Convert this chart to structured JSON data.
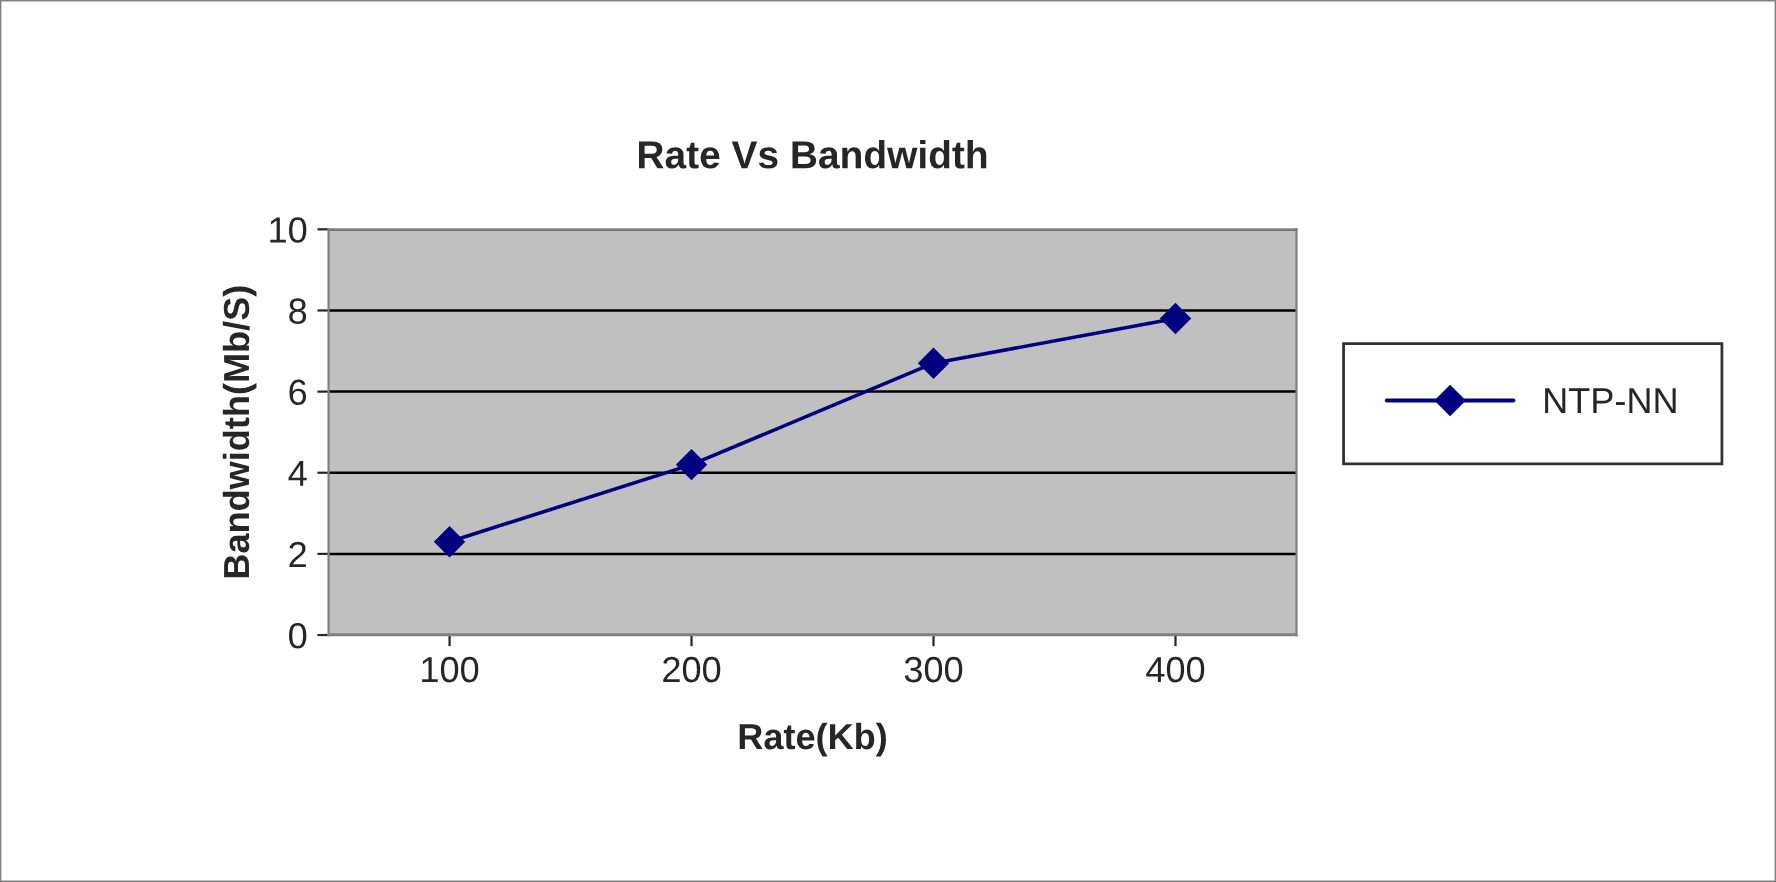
{
  "chart_data": {
    "type": "line",
    "title": "Rate Vs Bandwidth",
    "xlabel": "Rate(Kb)",
    "ylabel": "Bandwidth(Mb/S)",
    "categories": [
      "100",
      "200",
      "300",
      "400"
    ],
    "series": [
      {
        "name": "NTP-NN",
        "color": "#000080",
        "values": [
          2.3,
          4.2,
          6.7,
          7.8
        ]
      }
    ],
    "ylim": [
      0,
      10
    ],
    "yticks": [
      0,
      2,
      4,
      6,
      8,
      10
    ],
    "grid": "y",
    "legend": "right",
    "marker": "diamond",
    "line_style": "solid"
  }
}
